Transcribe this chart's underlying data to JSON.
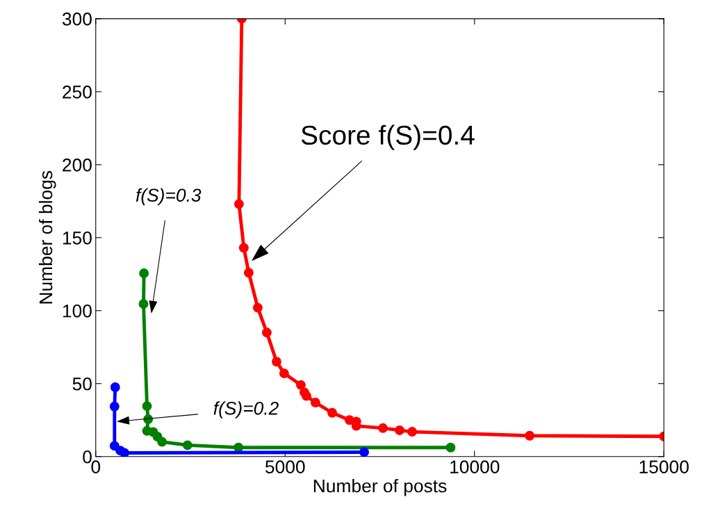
{
  "chart_data": {
    "type": "line",
    "xlabel": "Number of posts",
    "ylabel": "Number of blogs",
    "xlim": [
      0,
      15000
    ],
    "ylim": [
      0,
      300
    ],
    "xticks": [
      0,
      5000,
      10000,
      15000
    ],
    "yticks": [
      0,
      50,
      100,
      150,
      200,
      250,
      300
    ],
    "grid": false,
    "legend": false,
    "marker": "circle",
    "line_style": "solid",
    "series": [
      {
        "color": "#ff0000",
        "x": [
          3855,
          3782,
          3910,
          4039,
          4278,
          4516,
          4774,
          4975,
          5416,
          5508,
          5563,
          5802,
          6242,
          6701,
          6880,
          6880,
          7583,
          8023,
          8354,
          11456,
          15000
        ],
        "values": [
          300,
          173,
          143,
          126,
          102,
          85,
          65,
          57,
          49,
          44,
          41.5,
          37,
          30,
          25,
          24,
          21,
          19.5,
          18,
          17,
          14.3,
          13.8
        ]
      },
      {
        "color": "#008000",
        "x": [
          1273,
          1261,
          1353,
          1383,
          1353,
          1518,
          1628,
          1750,
          2423,
          3769,
          9370
        ],
        "values": [
          125.6,
          104.6,
          34.6,
          25.6,
          17.6,
          16.8,
          13.7,
          10.1,
          7.8,
          6.2,
          6.2
        ]
      },
      {
        "color": "#0000ff",
        "x": [
          514,
          496,
          496,
          649,
          758,
          7087
        ],
        "values": [
          47.5,
          34.3,
          7.3,
          4.1,
          2.5,
          3
        ]
      }
    ],
    "annotations": [
      {
        "text": "Score f(S)=0.4",
        "x": 4113,
        "y": 134
      },
      "f(S)=0.3",
      {
        "text": "f(S)=0.2",
        "x": 551,
        "y": 24
      }
    ]
  }
}
